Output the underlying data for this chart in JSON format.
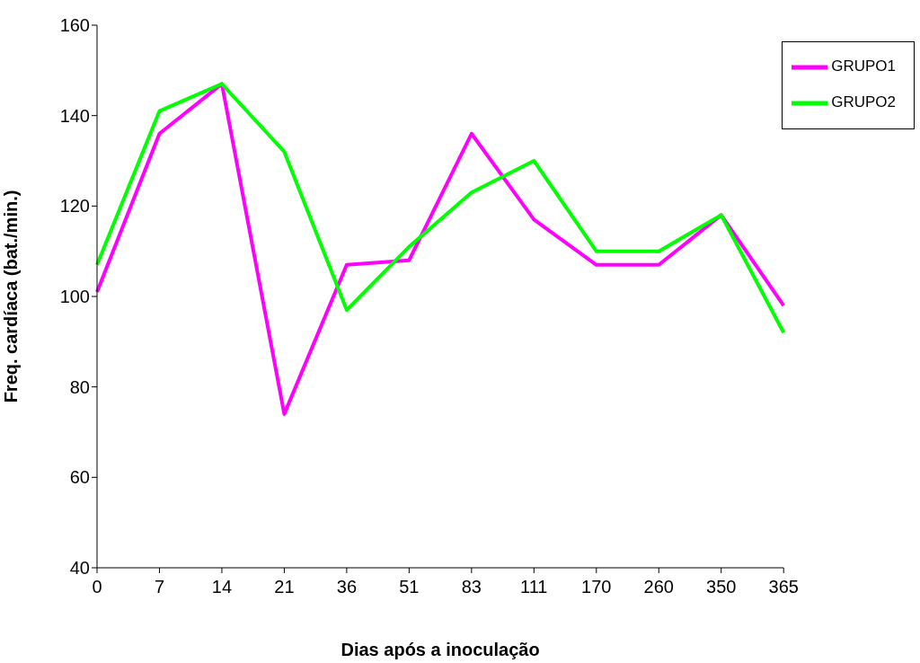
{
  "chart_data": {
    "type": "line",
    "xlabel": "Dias após a inoculação",
    "ylabel": "Freq. cardíaca (bat./min.)",
    "categories": [
      "0",
      "7",
      "14",
      "21",
      "36",
      "51",
      "83",
      "111",
      "170",
      "260",
      "350",
      "365"
    ],
    "series": [
      {
        "name": "GRUPO1",
        "color": "#ff00ff",
        "values": [
          101,
          136,
          147,
          74,
          107,
          108,
          136,
          117,
          107,
          107,
          118,
          98
        ]
      },
      {
        "name": "GRUPO2",
        "color": "#00ff00",
        "values": [
          107,
          141,
          147,
          132,
          97,
          111,
          123,
          130,
          110,
          110,
          118,
          92
        ]
      }
    ],
    "ylim": [
      40,
      160
    ],
    "yticks": [
      40,
      60,
      80,
      100,
      120,
      140,
      160
    ],
    "grid": false,
    "legend": "top right",
    "marker": "none",
    "line_style": "solid"
  }
}
